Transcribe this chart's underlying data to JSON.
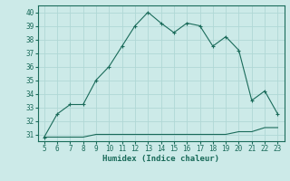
{
  "x": [
    5,
    6,
    7,
    8,
    9,
    10,
    11,
    12,
    13,
    14,
    15,
    16,
    17,
    18,
    19,
    20,
    21,
    22,
    23
  ],
  "y_main": [
    30.8,
    32.5,
    33.2,
    33.2,
    35.0,
    36.0,
    37.5,
    39.0,
    40.0,
    39.2,
    38.5,
    39.2,
    39.0,
    37.5,
    38.2,
    37.2,
    33.5,
    34.2,
    32.5
  ],
  "y_flat": [
    30.8,
    30.8,
    30.8,
    30.8,
    31.0,
    31.0,
    31.0,
    31.0,
    31.0,
    31.0,
    31.0,
    31.0,
    31.0,
    31.0,
    31.0,
    31.2,
    31.2,
    31.5,
    31.5
  ],
  "line_color": "#1a6b5a",
  "bg_color": "#cceae8",
  "grid_color": "#b0d8d5",
  "xlabel": "Humidex (Indice chaleur)",
  "xlim": [
    4.5,
    23.5
  ],
  "ylim": [
    30.5,
    40.5
  ],
  "yticks": [
    31,
    32,
    33,
    34,
    35,
    36,
    37,
    38,
    39,
    40
  ],
  "xticks": [
    5,
    6,
    7,
    8,
    9,
    10,
    11,
    12,
    13,
    14,
    15,
    16,
    17,
    18,
    19,
    20,
    21,
    22,
    23
  ],
  "tick_fontsize": 5.5,
  "xlabel_fontsize": 6.5
}
